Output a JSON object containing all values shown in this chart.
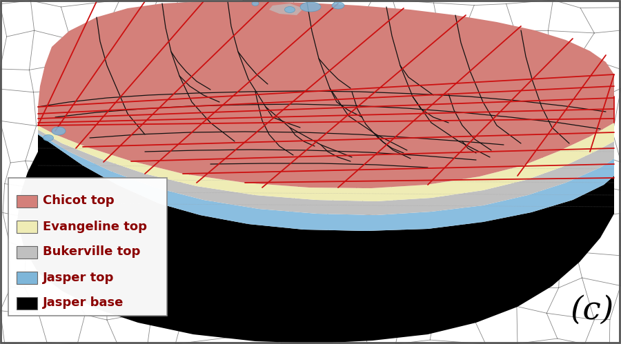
{
  "label_c": "(c)",
  "label_c_fontsize": 34,
  "label_c_color": "#000000",
  "legend_items": [
    {
      "label": "Chicot top",
      "color": "#D4807A"
    },
    {
      "label": "Evangeline top",
      "color": "#EFECB5"
    },
    {
      "label": "Bukerville top",
      "color": "#C0C0C0"
    },
    {
      "label": "Jasper top",
      "color": "#7EB6D9"
    },
    {
      "label": "Jasper base",
      "color": "#000000"
    }
  ],
  "legend_fontsize": 13,
  "legend_text_color": "#8B0000",
  "bg_color": "#ffffff",
  "image_aspect": [
    9.0,
    4.99
  ],
  "dpi": 100
}
